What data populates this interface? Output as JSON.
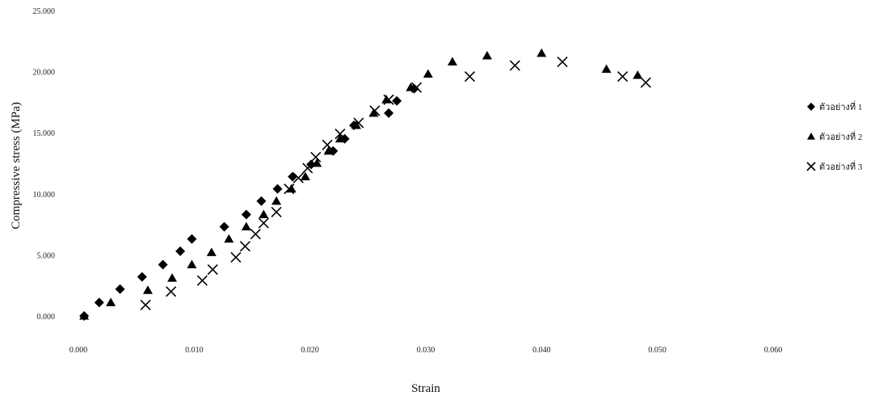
{
  "chart_data": {
    "type": "scatter",
    "xlabel": "Strain",
    "ylabel": "Compressive stress (MPa)",
    "xlim": [
      0,
      0.06
    ],
    "ylim": [
      0,
      25
    ],
    "x_ticks": [
      "0.000",
      "0.010",
      "0.020",
      "0.030",
      "0.040",
      "0.050",
      "0.060"
    ],
    "y_ticks": [
      "0.000",
      "5.000",
      "10.000",
      "15.000",
      "20.000",
      "25.000"
    ],
    "grid": false,
    "legend_position": "right",
    "series": [
      {
        "name": "ตัวอย่างที่ 1",
        "marker": "diamond",
        "points": [
          [
            0.0005,
            0.0
          ],
          [
            0.0018,
            1.1
          ],
          [
            0.0036,
            2.2
          ],
          [
            0.0055,
            3.2
          ],
          [
            0.0073,
            4.2
          ],
          [
            0.0088,
            5.3
          ],
          [
            0.0098,
            6.3
          ],
          [
            0.0126,
            7.3
          ],
          [
            0.0145,
            8.3
          ],
          [
            0.0158,
            9.4
          ],
          [
            0.0172,
            10.4
          ],
          [
            0.0185,
            11.4
          ],
          [
            0.0201,
            12.4
          ],
          [
            0.022,
            13.5
          ],
          [
            0.023,
            14.5
          ],
          [
            0.0238,
            15.6
          ],
          [
            0.0268,
            16.6
          ],
          [
            0.0275,
            17.6
          ],
          [
            0.029,
            18.6
          ]
        ]
      },
      {
        "name": "ตัวอย่างที่ 2",
        "marker": "triangle",
        "points": [
          [
            0.0005,
            0.0
          ],
          [
            0.0028,
            1.1
          ],
          [
            0.006,
            2.1
          ],
          [
            0.0081,
            3.1
          ],
          [
            0.0098,
            4.2
          ],
          [
            0.0115,
            5.2
          ],
          [
            0.013,
            6.3
          ],
          [
            0.0145,
            7.3
          ],
          [
            0.016,
            8.3
          ],
          [
            0.0171,
            9.4
          ],
          [
            0.0184,
            10.4
          ],
          [
            0.0196,
            11.4
          ],
          [
            0.0206,
            12.5
          ],
          [
            0.0216,
            13.5
          ],
          [
            0.0226,
            14.5
          ],
          [
            0.024,
            15.6
          ],
          [
            0.0255,
            16.6
          ],
          [
            0.0266,
            17.7
          ],
          [
            0.0287,
            18.7
          ],
          [
            0.0302,
            19.8
          ],
          [
            0.0323,
            20.8
          ],
          [
            0.0353,
            21.3
          ],
          [
            0.04,
            21.5
          ],
          [
            0.0456,
            20.2
          ],
          [
            0.0483,
            19.7
          ]
        ]
      },
      {
        "name": "ตัวอย่างที่ 3",
        "marker": "x",
        "points": [
          [
            0.0058,
            0.9
          ],
          [
            0.008,
            2.0
          ],
          [
            0.0107,
            2.9
          ],
          [
            0.0116,
            3.8
          ],
          [
            0.0136,
            4.8
          ],
          [
            0.0144,
            5.7
          ],
          [
            0.0153,
            6.7
          ],
          [
            0.016,
            7.6
          ],
          [
            0.0171,
            8.5
          ],
          [
            0.0182,
            10.4
          ],
          [
            0.019,
            11.3
          ],
          [
            0.0198,
            12.1
          ],
          [
            0.0205,
            13.0
          ],
          [
            0.0215,
            14.0
          ],
          [
            0.0226,
            14.9
          ],
          [
            0.0242,
            15.8
          ],
          [
            0.0256,
            16.8
          ],
          [
            0.0268,
            17.7
          ],
          [
            0.0292,
            18.7
          ],
          [
            0.0338,
            19.6
          ],
          [
            0.0377,
            20.5
          ],
          [
            0.0418,
            20.8
          ],
          [
            0.047,
            19.6
          ],
          [
            0.049,
            19.1
          ]
        ]
      }
    ]
  }
}
